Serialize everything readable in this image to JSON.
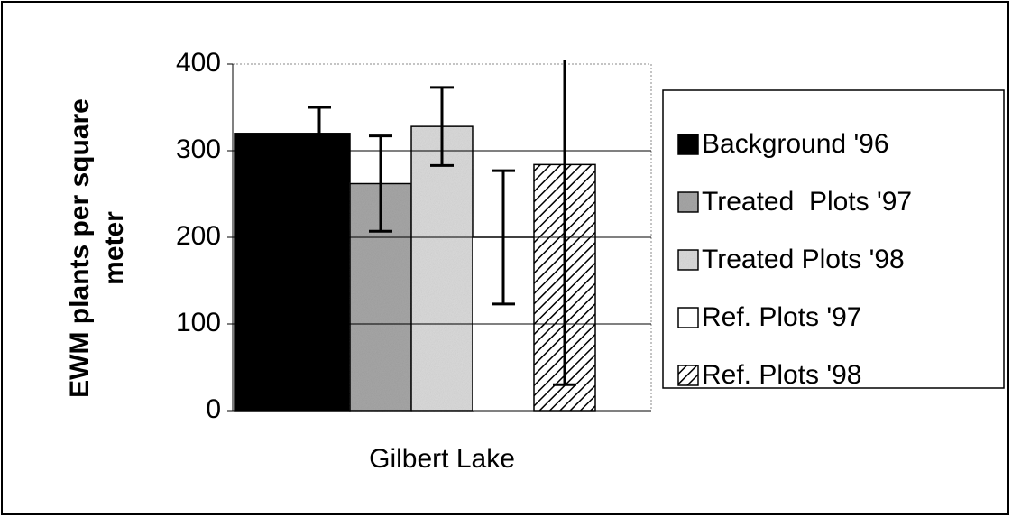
{
  "chart_data": {
    "type": "bar",
    "y_label": [
      "EWM plants per square",
      "meter"
    ],
    "categories": [
      "Gilbert Lake"
    ],
    "series": [
      {
        "name": "Background '96",
        "color": "#000000",
        "pattern": "solid",
        "values": [
          320
        ],
        "errors": [
          30
        ]
      },
      {
        "name": "Treated  Plots '97",
        "color": "#a8a8a8",
        "pattern": "stipple",
        "values": [
          262
        ],
        "errors": [
          55
        ]
      },
      {
        "name": "Treated Plots '98",
        "color": "#dcdcdc",
        "pattern": "stipple",
        "values": [
          328
        ],
        "errors": [
          45
        ]
      },
      {
        "name": "Ref. Plots '97",
        "color": "#ffffff",
        "pattern": "solid",
        "values": [
          200
        ],
        "errors": [
          77
        ]
      },
      {
        "name": "Ref. Plots '98",
        "color": "#ffffff",
        "pattern": "hatch",
        "values": [
          284
        ],
        "errors": [
          254
        ]
      }
    ],
    "ylim": [
      0,
      400
    ],
    "yticks": [
      0,
      100,
      200,
      300,
      400
    ],
    "grid": true,
    "legend": "right"
  }
}
